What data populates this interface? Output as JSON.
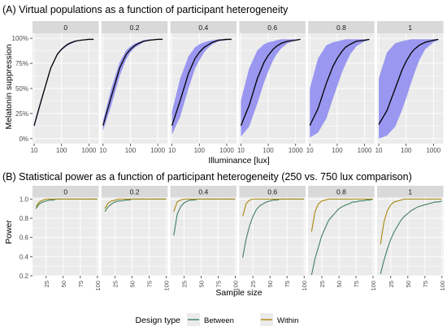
{
  "figure": {
    "legend_title": "Design type",
    "legend_items": [
      {
        "name": "Between",
        "color": "#3f7f5f"
      },
      {
        "name": "Within",
        "color": "#a8860a"
      }
    ]
  },
  "chart_data": [
    {
      "type": "line",
      "title": "(A) Virtual populations as a function of participant heterogeneity",
      "xlabel": "Illuminance [lux]",
      "ylabel": "Melatonin suppression",
      "x_scale": "log10",
      "xlim": [
        10,
        2000
      ],
      "ylim": [
        0,
        1
      ],
      "x_ticks": [
        10,
        100,
        1000
      ],
      "x_tick_labels": [
        "10",
        "100",
        "1000"
      ],
      "y_ticks": [
        0,
        0.25,
        0.5,
        0.75,
        1
      ],
      "y_tick_labels": [
        "0%",
        "25%",
        "50%",
        "75%",
        "100%"
      ],
      "line_color": "#000000",
      "band_color": "#8b88f0",
      "x": [
        10,
        20,
        40,
        70,
        100,
        150,
        200,
        300,
        500,
        1000,
        1500
      ],
      "panels": [
        {
          "label": "0",
          "median": [
            0.13,
            0.42,
            0.7,
            0.84,
            0.89,
            0.93,
            0.95,
            0.97,
            0.98,
            0.99,
            0.99
          ],
          "lower": [
            0.11,
            0.4,
            0.69,
            0.83,
            0.88,
            0.92,
            0.94,
            0.96,
            0.98,
            0.99,
            0.99
          ],
          "upper": [
            0.15,
            0.44,
            0.71,
            0.85,
            0.9,
            0.94,
            0.96,
            0.97,
            0.98,
            0.99,
            0.99
          ]
        },
        {
          "label": "0.2",
          "median": [
            0.13,
            0.42,
            0.7,
            0.84,
            0.89,
            0.93,
            0.95,
            0.97,
            0.98,
            0.99,
            0.99
          ],
          "lower": [
            0.08,
            0.33,
            0.62,
            0.79,
            0.86,
            0.91,
            0.93,
            0.96,
            0.98,
            0.99,
            0.99
          ],
          "upper": [
            0.18,
            0.5,
            0.76,
            0.88,
            0.92,
            0.95,
            0.96,
            0.98,
            0.99,
            0.99,
            0.99
          ]
        },
        {
          "label": "0.4",
          "median": [
            0.13,
            0.38,
            0.65,
            0.8,
            0.86,
            0.91,
            0.93,
            0.96,
            0.98,
            0.99,
            0.99
          ],
          "lower": [
            0.04,
            0.22,
            0.5,
            0.7,
            0.78,
            0.86,
            0.9,
            0.94,
            0.97,
            0.98,
            0.99
          ],
          "upper": [
            0.27,
            0.6,
            0.82,
            0.91,
            0.94,
            0.96,
            0.97,
            0.98,
            0.99,
            0.99,
            0.99
          ]
        },
        {
          "label": "0.6",
          "median": [
            0.13,
            0.33,
            0.6,
            0.76,
            0.83,
            0.89,
            0.92,
            0.95,
            0.97,
            0.98,
            0.99
          ],
          "lower": [
            0.02,
            0.12,
            0.35,
            0.56,
            0.67,
            0.78,
            0.84,
            0.9,
            0.95,
            0.98,
            0.99
          ],
          "upper": [
            0.38,
            0.7,
            0.88,
            0.94,
            0.96,
            0.97,
            0.98,
            0.99,
            0.99,
            0.99,
            0.99
          ]
        },
        {
          "label": "0.8",
          "median": [
            0.13,
            0.3,
            0.55,
            0.72,
            0.8,
            0.87,
            0.91,
            0.94,
            0.97,
            0.98,
            0.99
          ],
          "lower": [
            0.01,
            0.06,
            0.2,
            0.4,
            0.52,
            0.66,
            0.74,
            0.84,
            0.92,
            0.97,
            0.98
          ],
          "upper": [
            0.5,
            0.8,
            0.93,
            0.96,
            0.97,
            0.98,
            0.99,
            0.99,
            0.99,
            0.99,
            0.99
          ]
        },
        {
          "label": "1",
          "median": [
            0.14,
            0.28,
            0.5,
            0.68,
            0.77,
            0.85,
            0.89,
            0.93,
            0.96,
            0.98,
            0.99
          ],
          "lower": [
            0.0,
            0.03,
            0.12,
            0.28,
            0.4,
            0.55,
            0.65,
            0.78,
            0.89,
            0.96,
            0.98
          ],
          "upper": [
            0.6,
            0.86,
            0.95,
            0.97,
            0.98,
            0.99,
            0.99,
            0.99,
            0.99,
            0.99,
            0.99
          ]
        }
      ]
    },
    {
      "type": "line",
      "title": "(B) Statistical power as a function of participant heterogeneity (250 vs. 750 lux comparison)",
      "xlabel": "Sample size",
      "ylabel": "Power",
      "xlim": [
        5,
        102
      ],
      "ylim": [
        0.2,
        1.02
      ],
      "x_ticks": [
        25,
        50,
        75,
        100
      ],
      "x_tick_labels": [
        "25",
        "50",
        "75",
        "100"
      ],
      "y_ticks": [
        0.2,
        0.4,
        0.6,
        0.8,
        1.0
      ],
      "y_tick_labels": [
        "0.2",
        "0.4",
        "0.6",
        "0.8",
        "1.0"
      ],
      "x": [
        10,
        15,
        20,
        25,
        30,
        35,
        40,
        45,
        50,
        55,
        60,
        65,
        70,
        75,
        80,
        85,
        90,
        95,
        100
      ],
      "panels": [
        {
          "label": "0",
          "series": [
            {
              "name": "Between",
              "values": [
                0.9,
                0.95,
                0.97,
                0.98,
                0.99,
                0.99,
                1,
                1,
                1,
                1,
                1,
                1,
                1,
                1,
                1,
                1,
                1,
                1,
                1
              ]
            },
            {
              "name": "Within",
              "values": [
                0.92,
                0.97,
                0.99,
                1,
                1,
                1,
                1,
                1,
                1,
                1,
                1,
                1,
                1,
                1,
                1,
                1,
                1,
                1,
                1
              ]
            }
          ]
        },
        {
          "label": "0.2",
          "series": [
            {
              "name": "Between",
              "values": [
                0.87,
                0.92,
                0.95,
                0.97,
                0.98,
                0.98,
                0.99,
                0.99,
                1,
                1,
                1,
                1,
                1,
                1,
                1,
                1,
                1,
                1,
                1
              ]
            },
            {
              "name": "Within",
              "values": [
                0.9,
                0.96,
                0.98,
                0.99,
                1,
                1,
                1,
                1,
                1,
                1,
                1,
                1,
                1,
                1,
                1,
                1,
                1,
                1,
                1
              ]
            }
          ]
        },
        {
          "label": "0.4",
          "series": [
            {
              "name": "Between",
              "values": [
                0.62,
                0.84,
                0.92,
                0.96,
                0.98,
                0.99,
                0.99,
                1,
                1,
                1,
                1,
                1,
                1,
                1,
                1,
                1,
                1,
                1,
                1
              ]
            },
            {
              "name": "Within",
              "values": [
                0.87,
                0.97,
                0.99,
                1,
                1,
                1,
                1,
                1,
                1,
                1,
                1,
                1,
                1,
                1,
                1,
                1,
                1,
                1,
                1
              ]
            }
          ]
        },
        {
          "label": "0.6",
          "series": [
            {
              "name": "Between",
              "values": [
                0.39,
                0.58,
                0.72,
                0.82,
                0.89,
                0.93,
                0.95,
                0.97,
                0.98,
                0.99,
                0.99,
                1,
                1,
                1,
                1,
                1,
                1,
                1,
                1
              ]
            },
            {
              "name": "Within",
              "values": [
                0.82,
                0.95,
                0.99,
                1,
                1,
                1,
                1,
                1,
                1,
                1,
                1,
                1,
                1,
                1,
                1,
                1,
                1,
                1,
                1
              ]
            }
          ]
        },
        {
          "label": "0.8",
          "series": [
            {
              "name": "Between",
              "values": [
                0.21,
                0.38,
                0.5,
                0.62,
                0.7,
                0.78,
                0.82,
                0.86,
                0.9,
                0.92,
                0.94,
                0.95,
                0.97,
                0.97,
                0.98,
                0.98,
                0.99,
                0.99,
                1
              ]
            },
            {
              "name": "Within",
              "values": [
                0.66,
                0.87,
                0.95,
                0.98,
                0.99,
                1,
                1,
                1,
                1,
                1,
                1,
                1,
                1,
                1,
                1,
                1,
                1,
                1,
                1
              ]
            }
          ]
        },
        {
          "label": "1",
          "series": [
            {
              "name": "Between",
              "values": [
                0.22,
                0.36,
                0.48,
                0.58,
                0.66,
                0.72,
                0.78,
                0.82,
                0.85,
                0.88,
                0.9,
                0.92,
                0.93,
                0.94,
                0.95,
                0.96,
                0.97,
                0.97,
                0.98
              ]
            },
            {
              "name": "Within",
              "values": [
                0.53,
                0.76,
                0.88,
                0.94,
                0.97,
                0.98,
                0.99,
                1,
                1,
                1,
                1,
                1,
                1,
                1,
                1,
                1,
                1,
                1,
                1
              ]
            }
          ]
        }
      ]
    }
  ]
}
